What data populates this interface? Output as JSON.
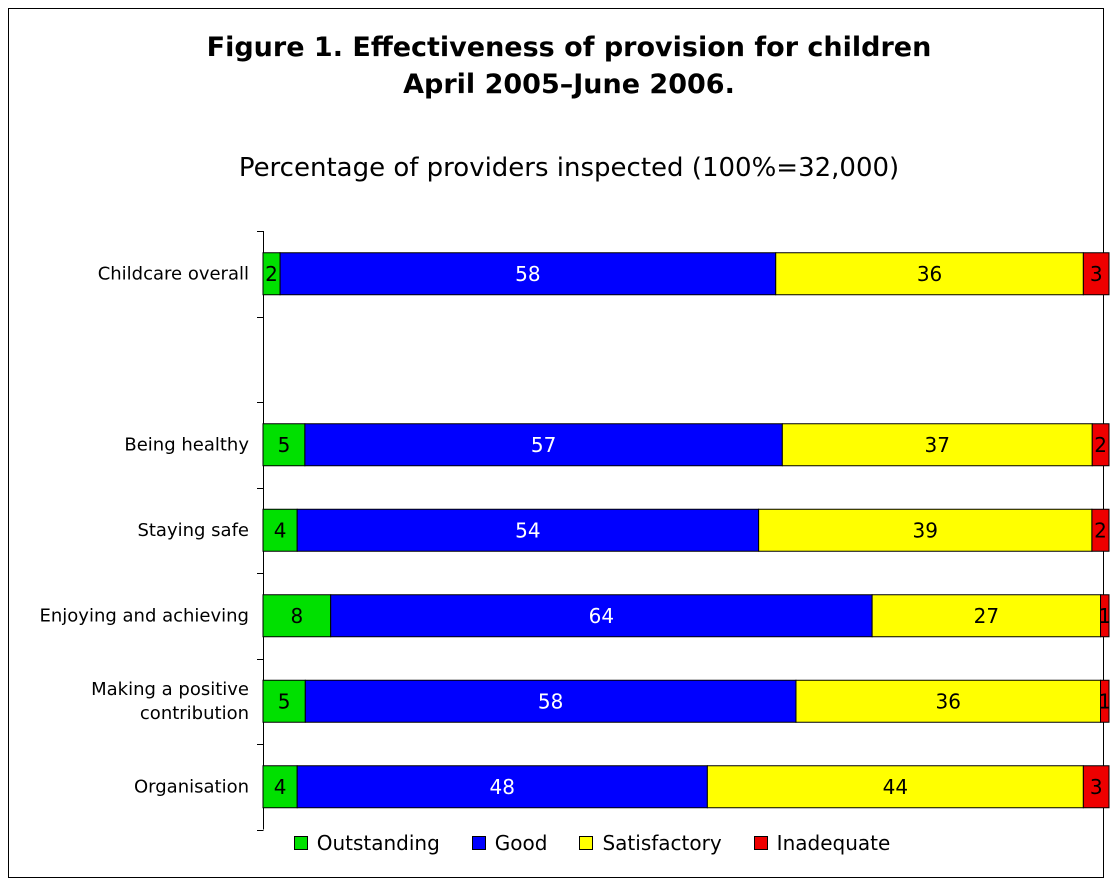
{
  "chart_data": {
    "type": "bar",
    "orientation": "horizontal",
    "stacked": true,
    "title": [
      "Figure 1. Effectiveness of provision for children",
      "April 2005–June 2006."
    ],
    "subtitle": "Percentage of providers inspected (100%=32,000)",
    "categories": [
      [
        "Childcare overall"
      ],
      [],
      [
        "Being healthy"
      ],
      [
        "Staying safe"
      ],
      [
        "Enjoying and achieving"
      ],
      [
        "Making a positive",
        "contribution"
      ],
      [
        "Organisation"
      ]
    ],
    "series": [
      {
        "name": "Outstanding",
        "color": "#00e000",
        "values": [
          2,
          null,
          5,
          4,
          8,
          5,
          4
        ]
      },
      {
        "name": "Good",
        "color": "#0000ff",
        "values": [
          58,
          null,
          57,
          54,
          64,
          58,
          48
        ]
      },
      {
        "name": "Satisfactory",
        "color": "#ffff00",
        "values": [
          36,
          null,
          37,
          39,
          27,
          36,
          44
        ]
      },
      {
        "name": "Inadequate",
        "color": "#ee0000",
        "values": [
          3,
          null,
          2,
          2,
          1,
          1,
          3
        ]
      }
    ],
    "label_colors": {
      "Outstanding": "#000000",
      "Good": "#ffffff",
      "Satisfactory": "#000000",
      "Inadequate": "#000000"
    },
    "legend_position": "bottom",
    "grid": false
  }
}
